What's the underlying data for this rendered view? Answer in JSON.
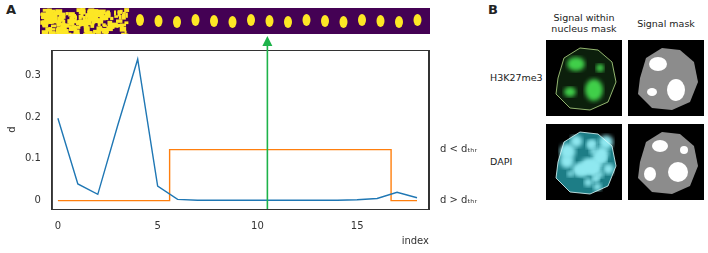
{
  "panel_labels": [
    "A",
    "B"
  ],
  "chart_data": {
    "type": "line",
    "x_label": "index",
    "y_label": "d",
    "xlim": [
      -0.3,
      18.6
    ],
    "xticks": [
      0,
      5,
      10,
      15
    ],
    "ylim": [
      -0.02,
      0.36
    ],
    "yticks": [
      0,
      0.1,
      0.2,
      0.3
    ],
    "y2lim": [
      -0.02,
      0.36
    ],
    "y2ticks": [
      {
        "value": 0.122,
        "label": "d < dₜₕᵣ"
      },
      {
        "value": 0,
        "label": "d > dₜₕᵣ"
      }
    ],
    "grid": false,
    "series": [
      {
        "color": "#1f77b4",
        "x": [
          0,
          1,
          2,
          3,
          4,
          5,
          6,
          7,
          8,
          9,
          10,
          11,
          12,
          13,
          14,
          15,
          16,
          17,
          18
        ],
        "values": [
          0.197,
          0.04,
          0.015,
          0.18,
          0.338,
          0.035,
          0.003,
          0.001,
          0.001,
          0.001,
          0.001,
          0.001,
          0.001,
          0.001,
          0.001,
          0.002,
          0.005,
          0.02,
          0.007
        ]
      },
      {
        "color": "#ff7f0e",
        "axis": "y2",
        "x": [
          0,
          5.6,
          5.6,
          16.7,
          16.7,
          18
        ],
        "values": [
          0,
          0,
          0.122,
          0.122,
          0,
          0
        ]
      }
    ],
    "vline": {
      "x": 10.5,
      "color": "#1db34a"
    }
  },
  "image_panel": {
    "column_titles": [
      "Signal within nucleus mask",
      "Signal mask"
    ],
    "row_labels": [
      "H3K27me3",
      "DAPI"
    ]
  }
}
